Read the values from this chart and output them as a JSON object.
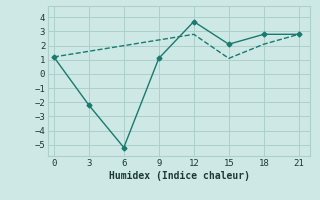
{
  "xlabel": "Humidex (Indice chaleur)",
  "background_color": "#cde8e5",
  "grid_color": "#aed0cc",
  "line_color": "#1a7a6e",
  "x_line1": [
    0,
    3,
    6,
    9,
    12,
    15,
    18,
    21
  ],
  "y_line1": [
    1.2,
    -2.2,
    -5.2,
    1.1,
    3.7,
    2.1,
    2.8,
    2.8
  ],
  "x_line2": [
    0,
    3,
    6,
    9,
    12,
    15,
    18,
    21
  ],
  "y_line2": [
    1.2,
    1.6,
    2.0,
    2.4,
    2.8,
    1.1,
    2.1,
    2.8
  ],
  "xlim": [
    -0.5,
    22
  ],
  "ylim": [
    -5.8,
    4.8
  ],
  "xticks": [
    0,
    3,
    6,
    9,
    12,
    15,
    18,
    21
  ],
  "yticks": [
    -5,
    -4,
    -3,
    -2,
    -1,
    0,
    1,
    2,
    3,
    4
  ]
}
